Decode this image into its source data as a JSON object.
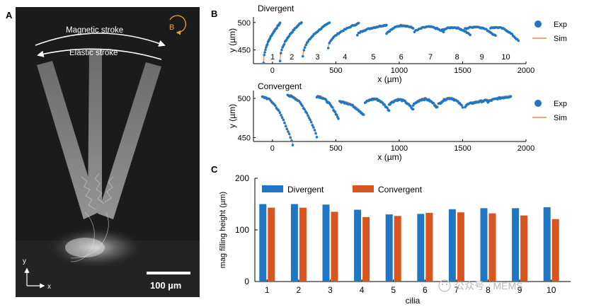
{
  "panels": {
    "a": {
      "letter": "A",
      "magnetic_stroke": "Magnetic stroke",
      "elastic_stroke": "Elastic stroke",
      "field_label": "B",
      "axis_y": "y",
      "axis_x": "x",
      "scale_bar": "100 µm"
    },
    "b": {
      "letter": "B"
    },
    "c": {
      "letter": "C"
    }
  },
  "watermark": "公众号 · MEMS",
  "colors": {
    "exp": "#1f77c4",
    "sim": "#e58a4a",
    "divergent_bar": "#1f77c4",
    "convergent_bar": "#d9541e",
    "arrow_field": "#e8a23a"
  },
  "chart_data": [
    {
      "type": "scatter",
      "title": "Divergent",
      "xlabel": "x (µm)",
      "ylabel": "y (µm)",
      "xlim": [
        -150,
        2000
      ],
      "ylim": [
        425,
        510
      ],
      "xticks": [
        0,
        500,
        1000,
        1500,
        2000
      ],
      "yticks": [
        450,
        500
      ],
      "legend": [
        "Exp",
        "Sim"
      ],
      "legend_position": "right",
      "cilia_labels": [
        "1",
        "2",
        "3",
        "4",
        "5",
        "6",
        "7",
        "8",
        "9",
        "10"
      ],
      "tip_curves": [
        {
          "cilium": "1",
          "x0": -70,
          "x1": 60,
          "y_left": 428,
          "y_right": 500,
          "shape": "rise"
        },
        {
          "cilium": "2",
          "x0": 60,
          "x1": 230,
          "y_left": 432,
          "y_right": 502,
          "shape": "rise"
        },
        {
          "cilium": "3",
          "x0": 240,
          "x1": 450,
          "y_left": 440,
          "y_right": 501,
          "shape": "rise"
        },
        {
          "cilium": "4",
          "x0": 440,
          "x1": 680,
          "y_left": 456,
          "y_right": 500,
          "shape": "rise"
        },
        {
          "cilium": "5",
          "x0": 670,
          "x1": 900,
          "y_left": 478,
          "y_right": 497,
          "shape": "rise"
        },
        {
          "cilium": "6",
          "x0": 900,
          "x1": 1110,
          "y_left": 482,
          "y_right": 491,
          "shape": "arch"
        },
        {
          "cilium": "7",
          "x0": 1120,
          "x1": 1350,
          "y_left": 485,
          "y_right": 484,
          "shape": "arch"
        },
        {
          "cilium": "8",
          "x0": 1330,
          "x1": 1560,
          "y_left": 487,
          "y_right": 479,
          "shape": "arch"
        },
        {
          "cilium": "9",
          "x0": 1520,
          "x1": 1760,
          "y_left": 490,
          "y_right": 477,
          "shape": "arch"
        },
        {
          "cilium": "10",
          "x0": 1720,
          "x1": 1940,
          "y_left": 492,
          "y_right": 468,
          "shape": "arch"
        }
      ]
    },
    {
      "type": "scatter",
      "title": "Convergent",
      "xlabel": "x (µm)",
      "ylabel": "y (µm)",
      "xlim": [
        -150,
        2000
      ],
      "ylim": [
        445,
        510
      ],
      "xticks": [
        0,
        500,
        1000,
        1500,
        2000
      ],
      "yticks": [
        450,
        500
      ],
      "legend": [
        "Exp",
        "Sim"
      ],
      "legend_position": "right",
      "tip_curves": [
        {
          "cilium": "1",
          "x0": -80,
          "x1": 160,
          "y_left": 503,
          "y_right": 442,
          "shape": "fall"
        },
        {
          "cilium": "2",
          "x0": 120,
          "x1": 350,
          "y_left": 505,
          "y_right": 453,
          "shape": "fall"
        },
        {
          "cilium": "3",
          "x0": 350,
          "x1": 520,
          "y_left": 504,
          "y_right": 476,
          "shape": "fall"
        },
        {
          "cilium": "4",
          "x0": 530,
          "x1": 720,
          "y_left": 497,
          "y_right": 480,
          "shape": "fall"
        },
        {
          "cilium": "5",
          "x0": 730,
          "x1": 920,
          "y_left": 496,
          "y_right": 486,
          "shape": "arch"
        },
        {
          "cilium": "6",
          "x0": 920,
          "x1": 1110,
          "y_left": 494,
          "y_right": 487,
          "shape": "arch"
        },
        {
          "cilium": "7",
          "x0": 1110,
          "x1": 1300,
          "y_left": 493,
          "y_right": 490,
          "shape": "arch"
        },
        {
          "cilium": "8",
          "x0": 1310,
          "x1": 1500,
          "y_left": 494,
          "y_right": 491,
          "shape": "arch"
        },
        {
          "cilium": "9",
          "x0": 1520,
          "x1": 1700,
          "y_left": 491,
          "y_right": 499,
          "shape": "rise"
        },
        {
          "cilium": "10",
          "x0": 1700,
          "x1": 1880,
          "y_left": 496,
          "y_right": 504,
          "shape": "rise"
        }
      ]
    },
    {
      "type": "bar",
      "xlabel": "cilia",
      "ylabel": "mag filling height (µm)",
      "ylim": [
        0,
        200
      ],
      "yticks": [
        0,
        100,
        200
      ],
      "categories": [
        "1",
        "2",
        "3",
        "4",
        "5",
        "6",
        "7",
        "8",
        "9",
        "10"
      ],
      "legend_position": "top",
      "series": [
        {
          "name": "Divergent",
          "values": [
            150,
            150,
            149,
            139,
            130,
            131,
            140,
            142,
            142,
            144
          ]
        },
        {
          "name": "Convergent",
          "values": [
            143,
            143,
            135,
            125,
            127,
            133,
            134,
            132,
            128,
            121
          ]
        }
      ]
    }
  ]
}
